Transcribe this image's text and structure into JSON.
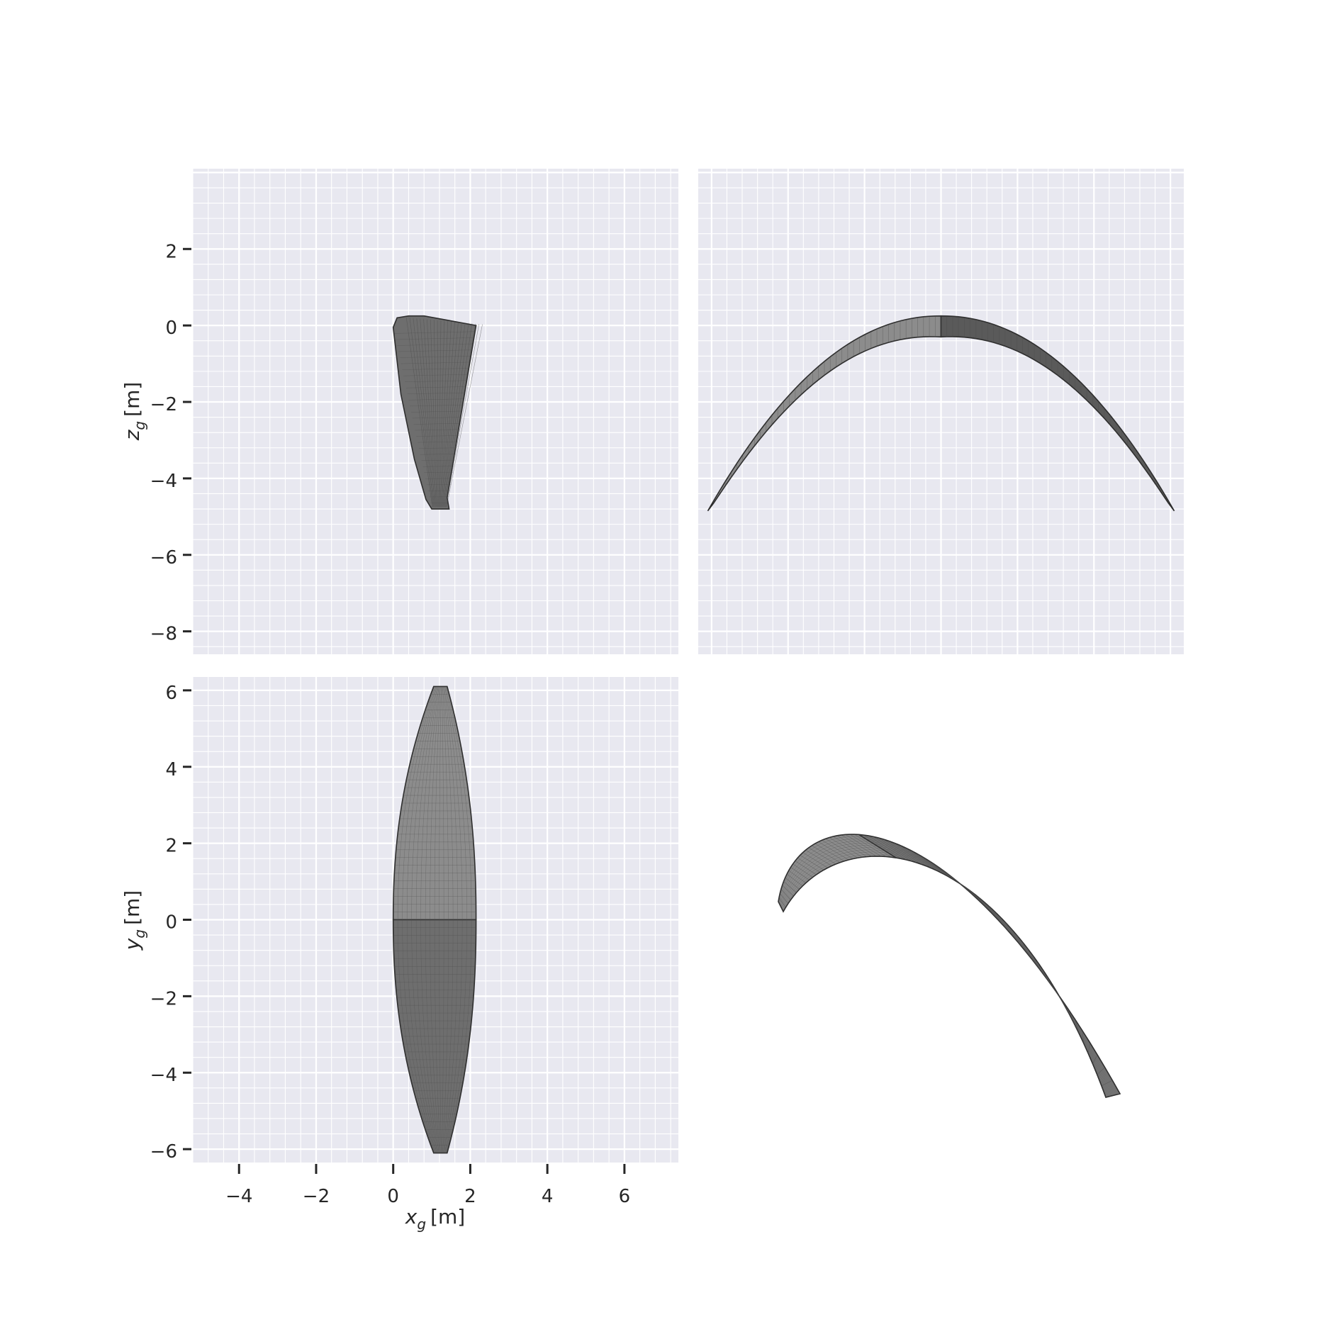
{
  "figure": {
    "background": "#ffffff",
    "panel_background": "#e8e8f0",
    "grid_color": "#ffffff",
    "canopy_fill": "#6e6e6e",
    "canopy_fill_light": "#8c8c8c",
    "canopy_mesh": "#4a4a4a"
  },
  "chart_data": [
    {
      "type": "line",
      "panel": "side-view",
      "position": "top-left",
      "xlim": [
        -5.2,
        7.4
      ],
      "ylim": [
        -8.6,
        4.1
      ],
      "grid": true,
      "xlabel": "",
      "ylabel": {
        "base": "z",
        "sub": "g",
        "unit": "[m]"
      },
      "yticks": [
        2,
        0,
        -2,
        -4,
        -6,
        -8
      ],
      "ytick_labels": [
        "2",
        "0",
        "−2",
        "−4",
        "−6",
        "−8"
      ],
      "series": [
        {
          "shape": "outline",
          "x": [
            0.0,
            0.1,
            0.4,
            0.8,
            2.15,
            1.9,
            1.65,
            1.4,
            1.45,
            1.4,
            1.0,
            0.85,
            0.55,
            0.2,
            0.0
          ],
          "y": [
            -0.05,
            0.2,
            0.25,
            0.25,
            0.0,
            -1.5,
            -3.0,
            -4.5,
            -4.8,
            -4.8,
            -4.8,
            -4.55,
            -3.5,
            -1.8,
            -0.05
          ]
        }
      ]
    },
    {
      "type": "line",
      "panel": "front-view",
      "position": "top-right",
      "xlim": [
        -6.35,
        6.35
      ],
      "ylim": [
        -8.6,
        4.1
      ],
      "grid": true,
      "series": [
        {
          "shape": "arc",
          "x_span": [
            -6.1,
            6.1
          ],
          "apex_z": 0.25,
          "tip_z": -4.85,
          "thickness": 0.55
        }
      ]
    },
    {
      "type": "line",
      "panel": "top-view",
      "position": "bottom-left",
      "xlim": [
        -5.2,
        7.4
      ],
      "ylim": [
        -6.35,
        6.35
      ],
      "grid": true,
      "xlabel": {
        "base": "x",
        "sub": "g",
        "unit": "[m]"
      },
      "ylabel": {
        "base": "y",
        "sub": "g",
        "unit": "[m]"
      },
      "xticks": [
        -4,
        -2,
        0,
        2,
        4,
        6
      ],
      "xtick_labels": [
        "−4",
        "−2",
        "0",
        "2",
        "4",
        "6"
      ],
      "yticks": [
        6,
        4,
        2,
        0,
        -2,
        -4,
        -6
      ],
      "ytick_labels": [
        "6",
        "4",
        "2",
        "0",
        "−2",
        "−4",
        "−6"
      ],
      "series": [
        {
          "shape": "planform",
          "leading_edge_x": 0.0,
          "trailing_edge_x": 2.15,
          "tip_x": [
            1.05,
            1.4
          ],
          "y_span": [
            -6.1,
            6.1
          ]
        }
      ]
    },
    {
      "type": "line",
      "panel": "perspective-view",
      "position": "bottom-right",
      "grid": false,
      "series": [
        {
          "shape": "3d-canopy"
        }
      ]
    }
  ]
}
